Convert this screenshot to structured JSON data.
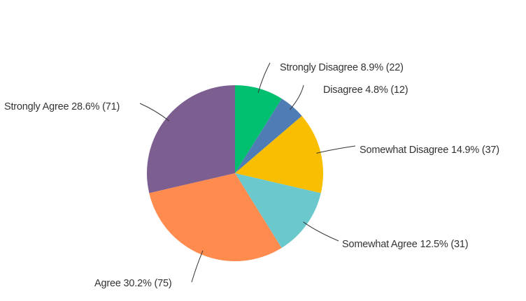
{
  "chart_data": {
    "type": "pie",
    "start": "top",
    "direction": "clockwise",
    "slices": [
      {
        "label": "Strongly Disagree",
        "percent": 8.9,
        "count": 22,
        "text": "Strongly Disagree 8.9% (22)",
        "color": "#00BF6F"
      },
      {
        "label": "Disagree",
        "percent": 4.8,
        "count": 12,
        "text": "Disagree 4.8% (12)",
        "color": "#507CB6"
      },
      {
        "label": "Somewhat Disagree",
        "percent": 14.9,
        "count": 37,
        "text": "Somewhat Disagree 14.9% (37)",
        "color": "#F9BE00"
      },
      {
        "label": "Somewhat Agree",
        "percent": 12.5,
        "count": 31,
        "text": "Somewhat Agree 12.5% (31)",
        "color": "#6BC8CD"
      },
      {
        "label": "Agree",
        "percent": 30.2,
        "count": 75,
        "text": "Agree 30.2% (75)",
        "color": "#FF8B4F"
      },
      {
        "label": "Strongly Agree",
        "percent": 28.6,
        "count": 71,
        "text": "Strongly Agree 28.6% (71)",
        "color": "#7D5E90"
      }
    ]
  }
}
